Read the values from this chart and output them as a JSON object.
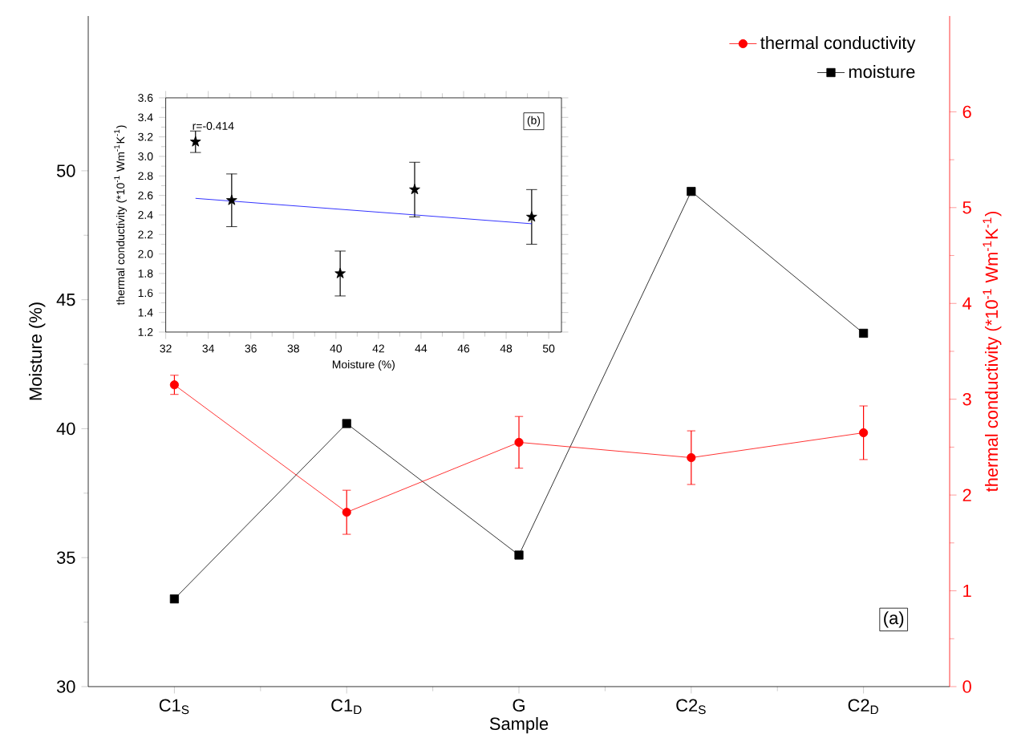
{
  "chart_data": [
    {
      "type": "line",
      "xlabel": "Sample",
      "ylabel": "Moisture (%)",
      "y2label": "thermal conductivity (*10$^{-1}$ Wm$^{-1}$K$^{-1}$)",
      "categories": [
        "C1$_{S}$",
        "C1$_{D}$",
        "G",
        "C2$_{S}$",
        "C2$_{D}$"
      ],
      "series": [
        {
          "name": "thermal conductivity",
          "color": "#ff0000",
          "axis": "y2",
          "marker": "circle",
          "values": [
            3.15,
            1.82,
            2.55,
            2.39,
            2.65
          ],
          "errors": [
            0.1,
            0.23,
            0.27,
            0.28,
            0.28
          ]
        },
        {
          "name": "moisture",
          "color": "#000000",
          "marker": "square",
          "values": [
            33.4,
            40.2,
            35.1,
            49.2,
            43.7
          ]
        }
      ],
      "ylim": [
        30,
        56
      ],
      "yticks": [
        30,
        35,
        40,
        45,
        50
      ],
      "y2lim": [
        0,
        7
      ],
      "y2ticks": [
        0,
        1,
        2,
        3,
        4,
        5,
        6
      ],
      "legend": "top right",
      "grid": false,
      "annotations": [
        "(a)"
      ]
    },
    {
      "type": "scatter",
      "xlabel": "Moisture (%)",
      "ylabel": "thermal conductivity (*10$^{-1}$ Wm$^{-1}$K$^{-1}$)",
      "series": [
        {
          "color": "#000000",
          "marker": "star",
          "x": [
            33.4,
            35.1,
            40.2,
            43.7,
            49.2
          ],
          "values": [
            3.15,
            2.55,
            1.8,
            2.66,
            2.38
          ],
          "errors": [
            0.11,
            0.27,
            0.23,
            0.28,
            0.28
          ]
        },
        {
          "type": "line",
          "color": "#0000ff",
          "marker": "none",
          "x": [
            33.4,
            49.2
          ],
          "values": [
            2.57,
            2.31
          ]
        }
      ],
      "xlim": [
        32,
        50.6
      ],
      "xticks": [
        32,
        34,
        36,
        38,
        40,
        42,
        44,
        46,
        48,
        50
      ],
      "ylim": [
        1.2,
        3.6
      ],
      "yticks": [
        1.2,
        1.4,
        1.6,
        1.8,
        {
          "value": 2,
          "label": "2.0"
        },
        2.2,
        2.4,
        2.6,
        2.8,
        {
          "value": 3,
          "label": "3.0"
        },
        3.2,
        3.4,
        3.6
      ],
      "legend": false,
      "grid": false,
      "annotations": [
        "r=-0.414",
        "(b)"
      ]
    }
  ]
}
